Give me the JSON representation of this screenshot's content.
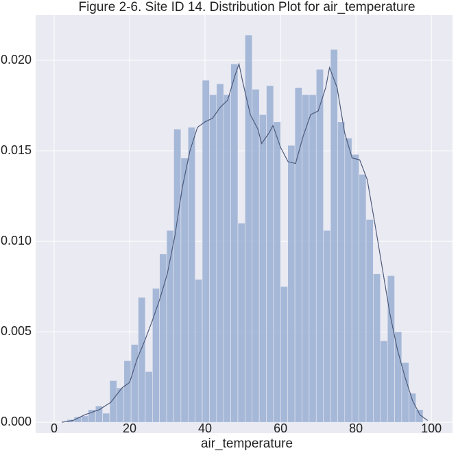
{
  "chart_data": {
    "type": "histogram",
    "title": "Figure 2-6.  Site ID 14. Distribution Plot for air_temperature",
    "xlabel": "air_temperature",
    "bins": [
      3.4,
      5.29,
      7.18,
      9.06,
      10.95,
      12.84,
      14.73,
      16.62,
      18.5,
      20.39,
      22.28,
      24.17,
      26.06,
      27.94,
      29.83,
      31.72,
      33.61,
      35.5,
      37.38,
      39.27,
      41.16,
      43.05,
      44.94,
      46.82,
      48.71,
      50.6,
      52.49,
      54.38,
      56.26,
      58.15,
      60.04,
      61.93,
      63.82,
      65.7,
      67.59,
      69.48,
      71.37,
      73.26,
      75.14,
      77.03,
      78.92,
      80.81,
      82.7,
      84.58,
      86.47,
      88.36,
      90.25,
      92.14,
      94.02,
      95.91,
      97.8
    ],
    "values": [
      0.00015,
      0.0003,
      0.00035,
      0.0007,
      0.0009,
      0.0005,
      0.0023,
      0.0019,
      0.0034,
      0.0043,
      0.0069,
      0.0028,
      0.0074,
      0.0093,
      0.0106,
      0.0162,
      0.0146,
      0.0163,
      0.0079,
      0.0189,
      0.0181,
      0.0187,
      0.0181,
      0.0198,
      0.011,
      0.0214,
      0.0184,
      0.017,
      0.0186,
      0.0166,
      0.0075,
      0.0153,
      0.0185,
      0.0181,
      0.0181,
      0.0195,
      0.0106,
      0.0206,
      0.0166,
      0.0157,
      0.0148,
      0.0137,
      0.0112,
      0.0082,
      0.0045,
      0.0081,
      0.005,
      0.0033,
      0.0016,
      0.0007
    ],
    "color": "#9aafd3",
    "kde": {
      "color": "#4c5a7a",
      "x": [
        2,
        5,
        8,
        12,
        15,
        18,
        20,
        22,
        24,
        26,
        28,
        30,
        32,
        34,
        36,
        38,
        40,
        42,
        44,
        46,
        48,
        49,
        50,
        52,
        54,
        55,
        57,
        58,
        60,
        62,
        64,
        66,
        68,
        70,
        72,
        73,
        75,
        77,
        79,
        81,
        83,
        85,
        87,
        89,
        91,
        93,
        95,
        97,
        99
      ],
      "values": [
        0,
        0.0001,
        0.0004,
        0.0007,
        0.0011,
        0.0019,
        0.0022,
        0.0035,
        0.0045,
        0.0056,
        0.0068,
        0.0082,
        0.0103,
        0.013,
        0.015,
        0.0163,
        0.0166,
        0.0168,
        0.0174,
        0.0178,
        0.0192,
        0.0198,
        0.0188,
        0.017,
        0.0162,
        0.0154,
        0.016,
        0.0164,
        0.0152,
        0.0144,
        0.0143,
        0.0158,
        0.017,
        0.0172,
        0.0185,
        0.0196,
        0.0185,
        0.016,
        0.0146,
        0.0145,
        0.0134,
        0.011,
        0.0085,
        0.006,
        0.004,
        0.0025,
        0.0012,
        0.0004,
        0.0001
      ]
    },
    "xlim": [
      -4.9,
      105.6
    ],
    "ylim": [
      -0.0006,
      0.0225
    ],
    "xticks": [
      0,
      20,
      40,
      60,
      80,
      100
    ],
    "yticks": [
      {
        "value": 0,
        "label": "0.000"
      },
      {
        "value": 0.005,
        "label": "0.005"
      },
      {
        "value": 0.01,
        "label": "0.010"
      },
      {
        "value": 0.015,
        "label": "0.015"
      },
      {
        "value": 0.02,
        "label": "0.020"
      }
    ],
    "grid": true
  }
}
